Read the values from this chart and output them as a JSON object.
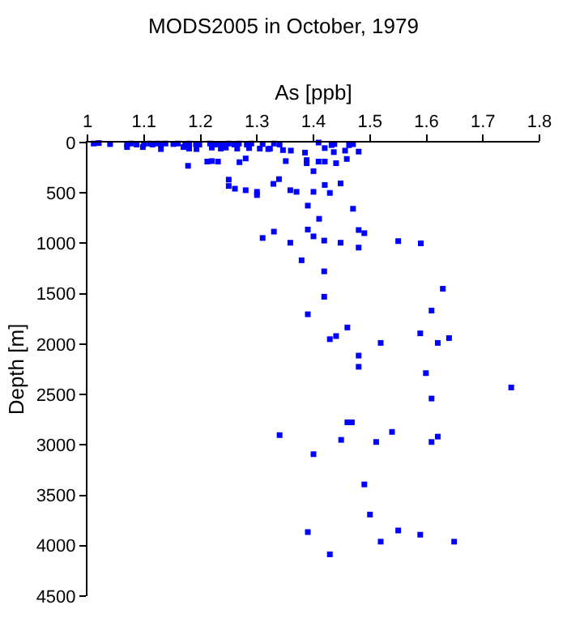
{
  "chart_data": {
    "type": "scatter",
    "title": "MODS2005 in October, 1979",
    "xlabel": "As [ppb]",
    "ylabel": "Depth [m]",
    "x": [
      1.011,
      1.02,
      1.04,
      1.07,
      1.077,
      1.087,
      1.1,
      1.11,
      1.115,
      1.124,
      1.13,
      1.138,
      1.152,
      1.16,
      1.173,
      1.18,
      1.192,
      1.198,
      1.217,
      1.225,
      1.231,
      1.24,
      1.25,
      1.26,
      1.268,
      1.282,
      1.29,
      1.31,
      1.33,
      1.34,
      1.409,
      1.432,
      1.437,
      1.07,
      1.098,
      1.13,
      1.17,
      1.18,
      1.193,
      1.22,
      1.236,
      1.245,
      1.265,
      1.286,
      1.305,
      1.32,
      1.323,
      1.346,
      1.36,
      1.42,
      1.436,
      1.456,
      1.385,
      1.48,
      1.463,
      1.47,
      1.178,
      1.212,
      1.22,
      1.231,
      1.269,
      1.28,
      1.351,
      1.388,
      1.388,
      1.4,
      1.409,
      1.42,
      1.44,
      1.459,
      1.25,
      1.25,
      1.261,
      1.28,
      1.3,
      1.3,
      1.329,
      1.339,
      1.359,
      1.37,
      1.4,
      1.42,
      1.429,
      1.448,
      1.39,
      1.41,
      1.47,
      1.31,
      1.33,
      1.359,
      1.39,
      1.4,
      1.419,
      1.448,
      1.48,
      1.49,
      1.48,
      1.55,
      1.59,
      1.379,
      1.419,
      1.419,
      1.629,
      1.609,
      1.39,
      1.46,
      1.429,
      1.44,
      1.519,
      1.589,
      1.62,
      1.64,
      1.48,
      1.48,
      1.599,
      1.609,
      1.75,
      1.46,
      1.468,
      1.34,
      1.449,
      1.511,
      1.539,
      1.609,
      1.62,
      1.4,
      1.49,
      1.5,
      1.39,
      1.429,
      1.519,
      1.55,
      1.589,
      1.649
    ],
    "values": [
      10,
      5,
      15,
      20,
      10,
      20,
      15,
      10,
      20,
      10,
      20,
      10,
      15,
      10,
      20,
      10,
      15,
      20,
      10,
      20,
      15,
      20,
      10,
      20,
      10,
      20,
      10,
      15,
      10,
      20,
      0,
      25,
      15,
      45,
      45,
      65,
      45,
      60,
      65,
      50,
      60,
      50,
      60,
      55,
      60,
      65,
      60,
      75,
      80,
      55,
      95,
      80,
      100,
      90,
      26,
      16,
      231,
      189,
      184,
      189,
      195,
      158,
      184,
      174,
      205,
      284,
      189,
      189,
      205,
      163,
      368,
      431,
      458,
      473,
      489,
      521,
      410,
      363,
      473,
      489,
      489,
      421,
      500,
      405,
      626,
      757,
      657,
      947,
      884,
      994,
      863,
      931,
      973,
      994,
      868,
      899,
      1042,
      978,
      1000,
      1168,
      1278,
      1530,
      1451,
      1667,
      1704,
      1835,
      1951,
      1920,
      1988,
      1893,
      1988,
      1940,
      2114,
      2225,
      2288,
      2540,
      2430,
      2776,
      2776,
      2903,
      2950,
      2971,
      2871,
      2971,
      2918,
      3092,
      3392,
      3691,
      3865,
      4086,
      3960,
      3849,
      3891,
      3960
    ],
    "color": "#0000ff",
    "marker": "square",
    "xlim": [
      1,
      1.8
    ],
    "xticks": [
      1,
      1.1,
      1.2,
      1.3,
      1.4,
      1.5,
      1.6,
      1.7,
      1.8
    ],
    "ylim": [
      4500,
      0
    ],
    "yticks": [
      0,
      500,
      1000,
      1500,
      2000,
      2500,
      3000,
      3500,
      4000,
      4500
    ]
  }
}
